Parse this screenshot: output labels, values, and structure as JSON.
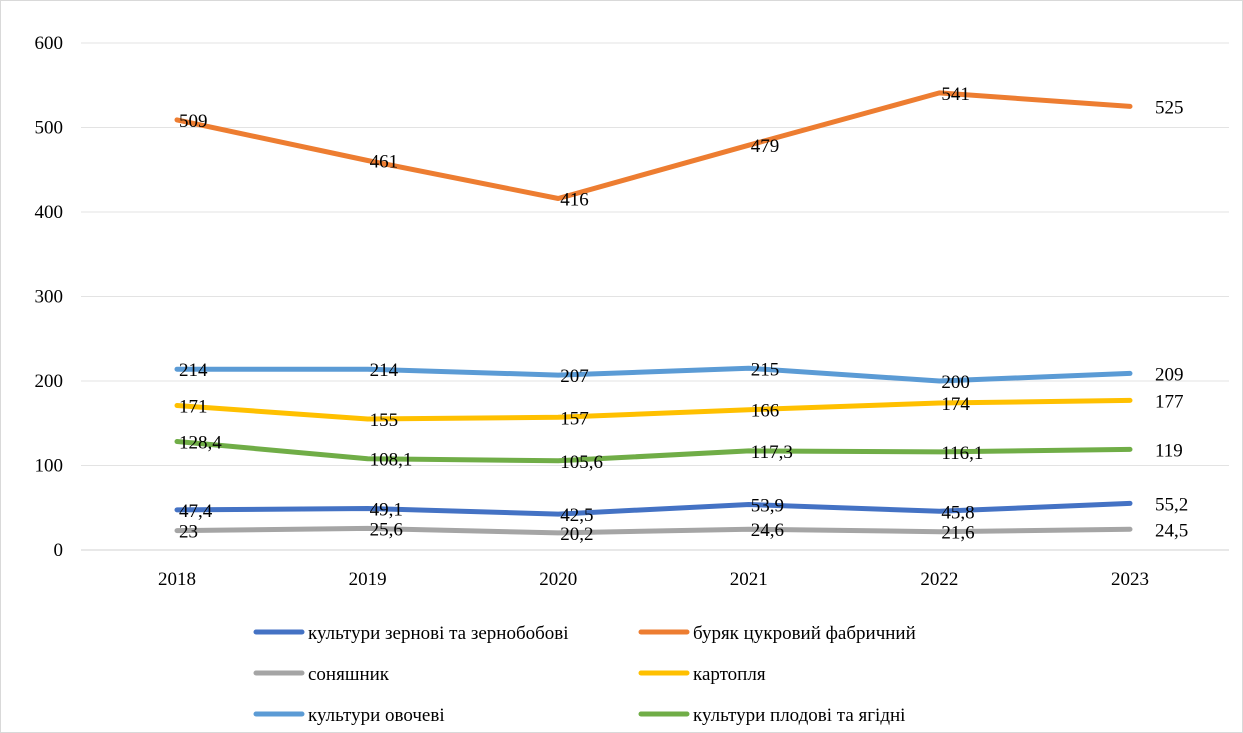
{
  "chart_data": {
    "type": "line",
    "categories": [
      "2018",
      "2019",
      "2020",
      "2021",
      "2022",
      "2023"
    ],
    "ylim": [
      0,
      600
    ],
    "yticks": [
      0,
      100,
      200,
      300,
      400,
      500,
      600
    ],
    "grid": true,
    "legend_position": "bottom",
    "series": [
      {
        "name": "культури зернові та зернобобові",
        "color": "#4472C4",
        "values": [
          47.4,
          49.1,
          42.5,
          53.9,
          45.8,
          55.2
        ],
        "labels": [
          "47,4",
          "49,1",
          "42,5",
          "53,9",
          "45,8",
          "55,2"
        ]
      },
      {
        "name": "буряк цукровий фабричний",
        "color": "#ED7D31",
        "values": [
          509,
          461,
          416,
          479,
          541,
          525
        ],
        "labels": [
          "509",
          "461",
          "416",
          "479",
          "541",
          "525"
        ]
      },
      {
        "name": "соняшник",
        "color": "#A5A5A5",
        "values": [
          23,
          25.6,
          20.2,
          24.6,
          21.6,
          24.5
        ],
        "labels": [
          "23",
          "25,6",
          "20,2",
          "24,6",
          "21,6",
          "24,5"
        ]
      },
      {
        "name": "картопля",
        "color": "#FFC000",
        "values": [
          171,
          155,
          157,
          166,
          174,
          177
        ],
        "labels": [
          "171",
          "155",
          "157",
          "166",
          "174",
          "177"
        ]
      },
      {
        "name": "культури овочеві",
        "color": "#5B9BD5",
        "values": [
          214,
          214,
          207,
          215,
          200,
          209
        ],
        "labels": [
          "214",
          "214",
          "207",
          "215",
          "200",
          "209"
        ]
      },
      {
        "name": "культури плодові та ягідні",
        "color": "#70AD47",
        "values": [
          128.4,
          108.1,
          105.6,
          117.3,
          116.1,
          119
        ],
        "labels": [
          "128,4",
          "108,1",
          "105,6",
          "117,3",
          "116,1",
          "119"
        ]
      }
    ]
  }
}
